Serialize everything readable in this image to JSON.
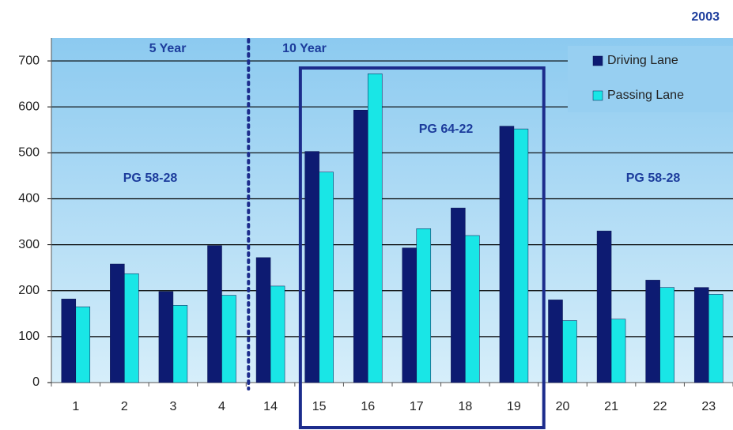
{
  "chart_data": {
    "type": "bar",
    "categories": [
      "1",
      "2",
      "3",
      "4",
      "14",
      "15",
      "16",
      "17",
      "18",
      "19",
      "20",
      "21",
      "22",
      "23"
    ],
    "series": [
      {
        "name": "Driving Lane",
        "color": "#0d1b72",
        "values": [
          182,
          258,
          198,
          298,
          272,
          503,
          593,
          293,
          380,
          558,
          180,
          330,
          223,
          207
        ]
      },
      {
        "name": "Passing Lane",
        "color": "#19e6e6",
        "values": [
          165,
          237,
          168,
          190,
          210,
          458,
          672,
          335,
          320,
          552,
          135,
          138,
          207,
          192
        ]
      }
    ],
    "ylim": [
      0,
      750
    ],
    "yticks": [
      0,
      100,
      200,
      300,
      400,
      500,
      600,
      700
    ],
    "grid": true,
    "legend": "upper right",
    "annotations": [
      "2003",
      "5 Year",
      "10 Year",
      "PG 58-28",
      "PG 64-22",
      "PG 58-28"
    ]
  }
}
